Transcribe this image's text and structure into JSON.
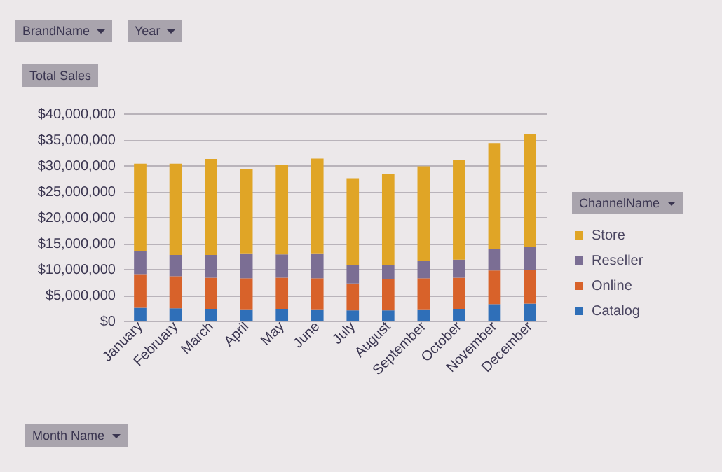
{
  "chart_data": {
    "type": "bar",
    "stacked": true,
    "ylabel": "Total Sales",
    "xlabel": "Month Name",
    "legend_title": "ChannelName",
    "annotations": [
      "BrandName",
      "Year"
    ],
    "categories": [
      "January",
      "February",
      "March",
      "April",
      "May",
      "June",
      "July",
      "August",
      "September",
      "October",
      "November",
      "December"
    ],
    "series": [
      {
        "name": "Catalog",
        "color": "#2f6fb8",
        "values": [
          2500000,
          2400000,
          2300000,
          2200000,
          2300000,
          2200000,
          2000000,
          2000000,
          2200000,
          2300000,
          3200000,
          3300000
        ]
      },
      {
        "name": "Online",
        "color": "#d8622a",
        "values": [
          6500000,
          6200000,
          6000000,
          6000000,
          6000000,
          6000000,
          5200000,
          6000000,
          6000000,
          6000000,
          6500000,
          6500000
        ]
      },
      {
        "name": "Reseller",
        "color": "#7b6e94",
        "values": [
          4500000,
          4100000,
          4400000,
          4800000,
          4500000,
          4800000,
          3600000,
          2800000,
          3300000,
          3500000,
          4100000,
          4500000
        ]
      },
      {
        "name": "Store",
        "color": "#e0a526",
        "values": [
          16800000,
          17600000,
          18500000,
          16300000,
          17200000,
          18300000,
          16700000,
          17500000,
          18300000,
          19200000,
          20500000,
          21700000
        ]
      }
    ],
    "ylim": [
      0,
      40000000
    ],
    "yticks": [
      {
        "value": 0,
        "label": "$0"
      },
      {
        "value": 5000000,
        "label": "$5,000,000"
      },
      {
        "value": 10000000,
        "label": "$10,000,000"
      },
      {
        "value": 15000000,
        "label": "$15,000,000"
      },
      {
        "value": 20000000,
        "label": "$20,000,000"
      },
      {
        "value": 25000000,
        "label": "$25,000,000"
      },
      {
        "value": 30000000,
        "label": "$30,000,000"
      },
      {
        "value": 35000000,
        "label": "$35,000,000"
      },
      {
        "value": 40000000,
        "label": "$40,000,000"
      }
    ],
    "grid": "y",
    "legend": "right"
  }
}
